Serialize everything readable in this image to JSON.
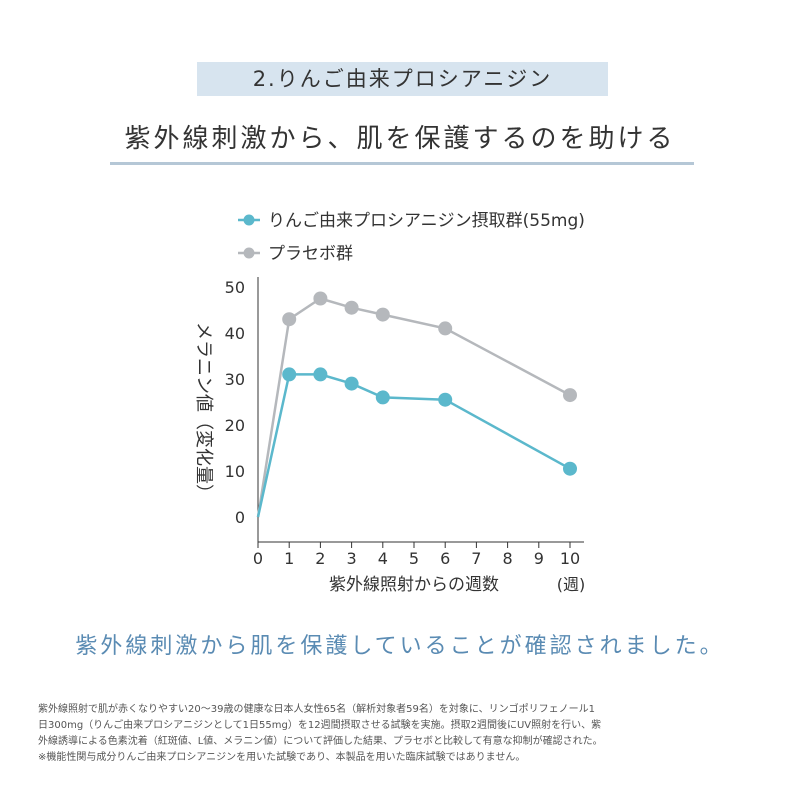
{
  "section_label": "2.りんご由来プロシアニジン",
  "headline": "紫外線刺激から、肌を保護するのを助ける",
  "conclusion": "紫外線刺激から肌を保護していることが確認されました。",
  "footnote": [
    "紫外線照射で肌が赤くなりやすい20〜39歳の健康な日本人女性65名（解析対象者59名）を対象に、リンゴポリフェノール1",
    "日300mg（りんご由来プロシアニジンとして1日55mg）を12週間摂取させる試験を実施。摂取2週間後にUV照射を行い、紫",
    "外線誘導による色素沈着（紅斑値、L値、メラニン値）について評価した結果、プラセボと比較して有意な抑制が確認された。",
    "※機能性関与成分りんご由来プロシアニジンを用いた試験であり、本製品を用いた臨床試験ではありません。"
  ],
  "chart_data": {
    "type": "line",
    "ylabel": "メラニン値（変化量）",
    "xlabel": "紫外線照射からの週数",
    "xunit": "(週)",
    "xlim": [
      0,
      10
    ],
    "ylim": [
      0,
      50
    ],
    "xticks": [
      0,
      1,
      2,
      3,
      4,
      5,
      6,
      7,
      8,
      9,
      10
    ],
    "yticks": [
      0,
      10,
      20,
      30,
      40,
      50
    ],
    "grid": false,
    "legend_position": "top-left",
    "series": [
      {
        "name": "りんご由来プロシアニジン摂取群(55mg)",
        "color": "#5bb8cc",
        "x": [
          0,
          1,
          2,
          3,
          4,
          6,
          10
        ],
        "y": [
          0,
          31,
          31,
          29,
          26,
          25.5,
          10.5
        ]
      },
      {
        "name": "プラセボ群",
        "color": "#b5b8bc",
        "x": [
          0,
          1,
          2,
          3,
          4,
          6,
          10
        ],
        "y": [
          0,
          43,
          47.5,
          45.5,
          44,
          41,
          26.5
        ]
      }
    ]
  }
}
